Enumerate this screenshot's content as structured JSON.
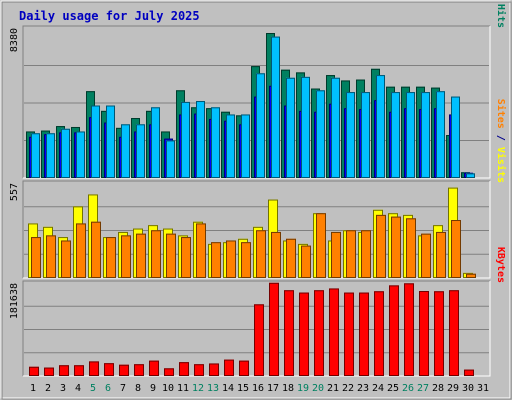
{
  "chart_data": {
    "type": "bar",
    "title": "Daily usage for July 2025",
    "categories": [
      "1",
      "2",
      "3",
      "4",
      "5",
      "6",
      "7",
      "8",
      "9",
      "10",
      "11",
      "12",
      "13",
      "14",
      "15",
      "16",
      "17",
      "18",
      "19",
      "20",
      "21",
      "22",
      "23",
      "24",
      "25",
      "26",
      "27",
      "28",
      "29",
      "30",
      "31"
    ],
    "weekend_days": [
      5,
      6,
      12,
      13,
      19,
      20,
      26,
      27
    ],
    "panels": [
      {
        "id": "top",
        "ymax": 8380,
        "ymax_label": "8380",
        "ylabel_parts": [
          {
            "text": "Pages",
            "color": "#00c0ff"
          },
          {
            "text": " / ",
            "color": "#00008b"
          },
          {
            "text": "Files",
            "color": "#0000ff"
          },
          {
            "text": " / ",
            "color": "#00008b"
          },
          {
            "text": "Hits",
            "color": "#008060"
          }
        ],
        "series": [
          {
            "name": "Hits",
            "color": "#008060",
            "values": [
              2600,
              2650,
              2900,
              2850,
              4850,
              3750,
              2800,
              3350,
              3750,
              2600,
              4900,
              3950,
              3900,
              3700,
              3500,
              6250,
              8100,
              6050,
              5900,
              5000,
              5750,
              5450,
              5500,
              6100,
              5100,
              5100,
              5100,
              5050,
              2400,
              320,
              0
            ]
          },
          {
            "name": "Files",
            "color": "#0000ff",
            "values": [
              2300,
              2450,
              2550,
              2550,
              3400,
              3100,
              2300,
              2600,
              3000,
              2200,
              3550,
              3600,
              3300,
              3200,
              3000,
              4550,
              5150,
              4050,
              3750,
              3700,
              4150,
              3900,
              3850,
              4350,
              3700,
              3900,
              3850,
              3900,
              3550,
              290,
              0
            ]
          },
          {
            "name": "Pages",
            "color": "#00c0ff",
            "values": [
              2500,
              2500,
              2750,
              2600,
              4050,
              4050,
              3000,
              3000,
              3950,
              2100,
              4250,
              4300,
              3950,
              3550,
              3550,
              5850,
              7900,
              5600,
              5650,
              4900,
              5600,
              4800,
              4800,
              5750,
              4800,
              4800,
              4800,
              4850,
              4550,
              260,
              0
            ]
          }
        ]
      },
      {
        "id": "mid",
        "ymax": 557,
        "ymax_label": "557",
        "ylabel_parts": [
          {
            "text": "Sites",
            "color": "#ff8000"
          },
          {
            "text": " / ",
            "color": "#00008b"
          },
          {
            "text": "Visits",
            "color": "#ffff00"
          }
        ],
        "series": [
          {
            "name": "Visits",
            "color": "#ffff00",
            "values": [
              320,
              300,
              240,
              420,
              490,
              240,
              270,
              290,
              310,
              290,
              250,
              330,
              200,
              210,
              230,
              300,
              460,
              220,
              200,
              380,
              220,
              280,
              270,
              400,
              380,
              370,
              250,
              310,
              530,
              30,
              0
            ]
          },
          {
            "name": "Sites",
            "color": "#ff8000",
            "values": [
              240,
              250,
              220,
              320,
              330,
              240,
              250,
              260,
              280,
              260,
              240,
              320,
              210,
              220,
              210,
              280,
              270,
              230,
              190,
              380,
              270,
              280,
              280,
              370,
              360,
              350,
              260,
              270,
              340,
              25,
              0
            ]
          }
        ]
      },
      {
        "id": "bottom",
        "ymax": 181638,
        "ymax_label": "181638",
        "ylabel_parts": [
          {
            "text": "KBytes",
            "color": "#ff0000"
          }
        ],
        "series": [
          {
            "name": "KBytes",
            "color": "#ff0000",
            "values": [
              18000,
              16500,
              21000,
              21000,
              28500,
              25000,
              22000,
              23000,
              30000,
              15000,
              27000,
              23000,
              24500,
              32000,
              30000,
              140000,
              182000,
              167500,
              163000,
              167500,
              171000,
              163000,
              163000,
              165500,
              177000,
              181000,
              166000,
              165500,
              167500,
              12500,
              0
            ]
          }
        ]
      }
    ]
  }
}
